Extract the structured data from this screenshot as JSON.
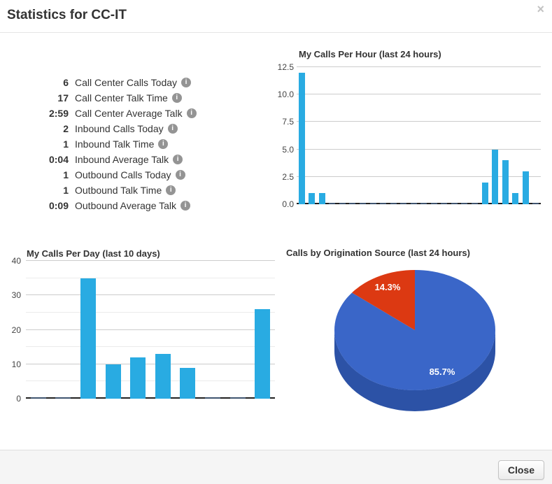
{
  "modal": {
    "title": "Statistics for CC-IT",
    "close_glyph": "×",
    "footer": {
      "close_label": "Close"
    }
  },
  "stats": {
    "info_icon_glyph": "i",
    "items": [
      {
        "value": "6",
        "label": "Call Center Calls Today"
      },
      {
        "value": "17",
        "label": "Call Center Talk Time"
      },
      {
        "value": "2:59",
        "label": "Call Center Average Talk"
      },
      {
        "value": "2",
        "label": "Inbound Calls Today"
      },
      {
        "value": "1",
        "label": "Inbound Talk Time"
      },
      {
        "value": "0:04",
        "label": "Inbound Average Talk"
      },
      {
        "value": "1",
        "label": "Outbound Calls Today"
      },
      {
        "value": "1",
        "label": "Outbound Talk Time"
      },
      {
        "value": "0:09",
        "label": "Outbound Average Talk"
      }
    ]
  },
  "chart_data": [
    {
      "type": "bar",
      "title": "My Calls Per Hour (last 24 hours)",
      "xlabel": "",
      "ylabel": "",
      "ylim": [
        0,
        12.5
      ],
      "grid": true,
      "legend": "none",
      "bar_color": "#29abe2",
      "values": [
        12,
        1,
        1,
        0,
        0,
        0,
        0,
        0,
        0,
        0,
        0,
        0,
        0,
        0,
        0,
        0,
        0,
        0,
        2,
        5,
        4,
        1,
        3,
        0
      ],
      "yticks": [
        {
          "value": 0,
          "label": "0.0"
        },
        {
          "value": 2.5,
          "label": "2.5"
        },
        {
          "value": 5,
          "label": "5.0"
        },
        {
          "value": 7.5,
          "label": "7.5"
        },
        {
          "value": 10,
          "label": "10.0"
        },
        {
          "value": 12.5,
          "label": "12.5"
        }
      ]
    },
    {
      "type": "bar",
      "title": "My Calls Per Day (last 10 days)",
      "xlabel": "",
      "ylabel": "",
      "ylim": [
        0,
        40
      ],
      "grid": true,
      "legend": "none",
      "bar_color": "#29abe2",
      "values": [
        0,
        0,
        35,
        10,
        12,
        13,
        9,
        0,
        0,
        26
      ],
      "yticks": [
        {
          "value": 0,
          "label": "0"
        },
        {
          "value": 5,
          "label": ""
        },
        {
          "value": 10,
          "label": "10"
        },
        {
          "value": 15,
          "label": ""
        },
        {
          "value": 20,
          "label": "20"
        },
        {
          "value": 25,
          "label": ""
        },
        {
          "value": 30,
          "label": "30"
        },
        {
          "value": 35,
          "label": ""
        },
        {
          "value": 40,
          "label": "40"
        }
      ]
    },
    {
      "type": "pie",
      "title": "Calls by Origination Source (last 24 hours)",
      "is3d": true,
      "legend": "none",
      "depth_color": "#2c52a6",
      "slices": [
        {
          "label": "85.7%",
          "value": 85.7,
          "color": "#3a66c8"
        },
        {
          "label": "14.3%",
          "value": 14.3,
          "color": "#dc3912"
        }
      ]
    }
  ]
}
